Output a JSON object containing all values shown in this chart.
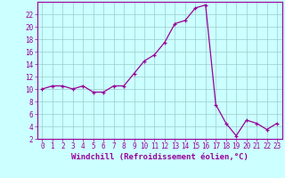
{
  "x": [
    0,
    1,
    2,
    3,
    4,
    5,
    6,
    7,
    8,
    9,
    10,
    11,
    12,
    13,
    14,
    15,
    16,
    17,
    18,
    19,
    20,
    21,
    22,
    23
  ],
  "y": [
    10,
    10.5,
    10.5,
    10,
    10.5,
    9.5,
    9.5,
    10.5,
    10.5,
    12.5,
    14.5,
    15.5,
    17.5,
    20.5,
    21,
    23,
    23.5,
    7.5,
    4.5,
    2.5,
    5,
    4.5,
    3.5,
    4.5
  ],
  "line_color": "#990099",
  "marker": "+",
  "marker_size": 3,
  "bg_color": "#ccffff",
  "grid_color": "#99cccc",
  "xlabel": "Windchill (Refroidissement éolien,°C)",
  "xlabel_color": "#990099",
  "tick_color": "#990099",
  "axis_color": "#990099",
  "xlim": [
    -0.5,
    23.5
  ],
  "ylim": [
    2,
    24
  ],
  "yticks": [
    2,
    4,
    6,
    8,
    10,
    12,
    14,
    16,
    18,
    20,
    22
  ],
  "xticks": [
    0,
    1,
    2,
    3,
    4,
    5,
    6,
    7,
    8,
    9,
    10,
    11,
    12,
    13,
    14,
    15,
    16,
    17,
    18,
    19,
    20,
    21,
    22,
    23
  ],
  "font_name": "monospace",
  "tick_fontsize": 5.5,
  "xlabel_fontsize": 6.5,
  "lw": 0.9
}
